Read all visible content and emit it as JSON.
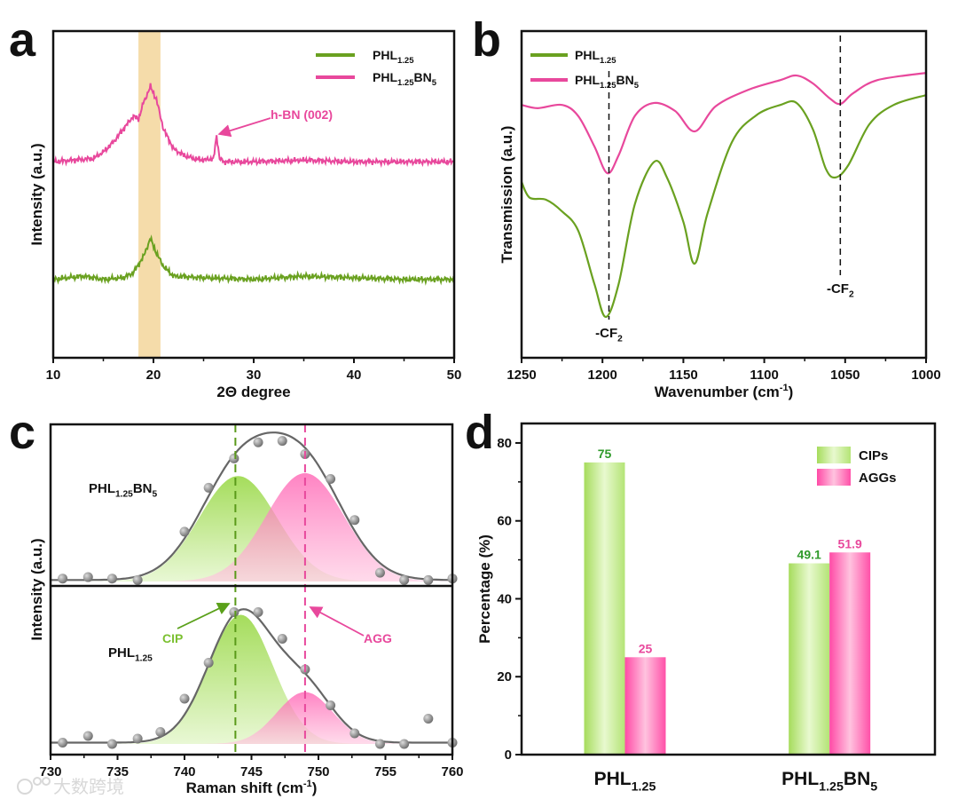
{
  "figure": {
    "panel_labels": [
      "a",
      "b",
      "c",
      "d"
    ],
    "watermark": "大数跨境"
  },
  "chart_data": [
    {
      "panel": "a",
      "type": "line",
      "xlabel": "2Θ degree",
      "ylabel": "Intensity (a.u.)",
      "xlim": [
        10,
        50
      ],
      "ylim": [
        0,
        100
      ],
      "xticks": [
        10,
        20,
        30,
        40,
        50
      ],
      "xtick_labels": [
        "10",
        "20",
        "30",
        "40",
        "50"
      ],
      "highlight_band": [
        18.5,
        20.7
      ],
      "highlight_color": "#f5dcaa",
      "annotation": {
        "text": "h-BN (002)",
        "x": 26.3,
        "color": "#e8489c"
      },
      "series": [
        {
          "label": {
            "base": "PHL",
            "sub": "1.25",
            "base2": "",
            "sub2": ""
          },
          "color": "#6aa120",
          "x": [
            10,
            13,
            15,
            17,
            18,
            19,
            19.7,
            20.3,
            21,
            22,
            25,
            30,
            35,
            40,
            45,
            50
          ],
          "y": [
            24,
            25,
            24,
            24.5,
            26,
            31,
            36.5,
            32,
            28,
            25,
            24.5,
            24,
            25,
            24.5,
            24,
            24
          ]
        },
        {
          "label": {
            "base": "PHL",
            "sub": "1.25",
            "base2": "BN",
            "sub2": "5"
          },
          "color": "#e8489c",
          "x": [
            10,
            12,
            14,
            15,
            16,
            17,
            18,
            18.5,
            19,
            19.7,
            20.3,
            21,
            22,
            23,
            24,
            25,
            26,
            26.3,
            26.6,
            27,
            30,
            35,
            40,
            45,
            50
          ],
          "y": [
            60,
            60.5,
            61,
            63,
            66,
            70,
            74,
            73,
            78,
            83,
            79,
            70,
            64,
            62,
            61,
            60.5,
            61,
            68,
            61,
            60,
            60,
            60.5,
            60,
            60,
            60
          ]
        }
      ]
    },
    {
      "panel": "b",
      "type": "line",
      "xlabel": {
        "base": "Wavenumber (cm",
        "sup": "-1",
        "end": ")"
      },
      "ylabel": "Transmission (a.u.)",
      "xlim": [
        1250,
        1000
      ],
      "ylim": [
        0,
        100
      ],
      "xticks": [
        1250,
        1200,
        1150,
        1100,
        1050,
        1000
      ],
      "xtick_labels": [
        "1250",
        "1200",
        "1150",
        "1100",
        "1050",
        "1000"
      ],
      "dashed_lines": [
        1196,
        1053
      ],
      "annotations": [
        {
          "base": "-CF",
          "sub": "2",
          "x": 1196
        },
        {
          "base": "-CF",
          "sub": "2",
          "x": 1053
        }
      ],
      "series": [
        {
          "label": {
            "base": "PHL",
            "sub": "1.25",
            "base2": "",
            "sub2": ""
          },
          "color": "#6aa120",
          "x": [
            1250,
            1245,
            1235,
            1225,
            1215,
            1205,
            1198,
            1190,
            1180,
            1168,
            1160,
            1150,
            1143,
            1135,
            1120,
            1105,
            1090,
            1080,
            1070,
            1062,
            1056,
            1048,
            1035,
            1020,
            1000
          ],
          "y": [
            53.8,
            49,
            48.4,
            44.8,
            38.9,
            22.6,
            12.5,
            22.6,
            47,
            60,
            55,
            41.6,
            28.8,
            44.3,
            66,
            74.2,
            77.4,
            78,
            70,
            57.9,
            55.2,
            59,
            71.5,
            77.4,
            80.4
          ]
        },
        {
          "label": {
            "base": "PHL",
            "sub": "1.25",
            "base2": "BN",
            "sub2": "5"
          },
          "color": "#e8489c",
          "x": [
            1250,
            1240,
            1225,
            1215,
            1205,
            1197,
            1190,
            1180,
            1168,
            1155,
            1143,
            1130,
            1110,
            1090,
            1080,
            1070,
            1060,
            1053,
            1045,
            1030,
            1000
          ],
          "y": [
            77.4,
            76.4,
            77.4,
            74,
            64.7,
            56.5,
            62,
            74,
            78,
            75.5,
            69.3,
            77,
            82,
            85,
            86.4,
            84,
            79.6,
            77.7,
            81,
            85,
            87.2
          ]
        }
      ]
    },
    {
      "panel": "c",
      "type": "scatter",
      "xlabel": {
        "base": "Raman shift (cm",
        "sup": "-1",
        "end": ")"
      },
      "ylabel": "Intensity (a.u.)",
      "xlim": [
        730,
        760
      ],
      "xticks": [
        730,
        735,
        740,
        745,
        750,
        755,
        760
      ],
      "xtick_labels": [
        "730",
        "735",
        "740",
        "745",
        "750",
        "755",
        "760"
      ],
      "dashed_lines": [
        {
          "x": 743.8,
          "color": "#5a9a1a"
        },
        {
          "x": 749,
          "color": "#e8489c"
        }
      ],
      "markers": [
        {
          "text": "CIP",
          "color": "#7bc030"
        },
        {
          "text": "AGG",
          "color": "#e8489c"
        }
      ],
      "samples": [
        {
          "label": {
            "base": "PHL",
            "sub": "1.25",
            "base2": "BN",
            "sub2": "5"
          },
          "x": [
            730.9,
            732.8,
            734.6,
            736.5,
            740,
            741.8,
            743.7,
            745.5,
            747.3,
            749,
            750.9,
            752.7,
            754.6,
            756.4,
            758.2,
            760
          ],
          "y": [
            0.02,
            0.03,
            0.02,
            0.01,
            0.34,
            0.64,
            0.84,
            0.95,
            0.96,
            0.87,
            0.7,
            0.42,
            0.06,
            0.01,
            0.01,
            0.02
          ],
          "components": [
            {
              "name": "CIP",
              "center": 744,
              "amplitude": 0.72,
              "width": 2.9
            },
            {
              "name": "AGG",
              "center": 749,
              "amplitude": 0.74,
              "width": 2.9
            }
          ]
        },
        {
          "label": {
            "base": "PHL",
            "sub": "1.25",
            "base2": "",
            "sub2": ""
          },
          "x": [
            730.9,
            732.8,
            734.6,
            736.5,
            738.2,
            740,
            741.8,
            743.7,
            745.5,
            747.3,
            749,
            750.9,
            752.7,
            754.6,
            756.4,
            758.2,
            760
          ],
          "y": [
            0.01,
            0.06,
            0,
            0.04,
            0.09,
            0.34,
            0.61,
            0.99,
            0.99,
            0.79,
            0.56,
            0.29,
            0.08,
            0,
            0,
            0.19,
            0.01
          ],
          "components": [
            {
              "name": "CIP",
              "center": 744.2,
              "amplitude": 0.97,
              "width": 2.4
            },
            {
              "name": "AGG",
              "center": 749,
              "amplitude": 0.39,
              "width": 2.1
            }
          ]
        }
      ]
    },
    {
      "panel": "d",
      "type": "bar",
      "ylabel": "Percentage (%)",
      "ylim": [
        0,
        85
      ],
      "yticks": [
        0,
        20,
        40,
        60,
        80
      ],
      "ytick_labels": [
        "0",
        "20",
        "40",
        "60",
        "80"
      ],
      "categories": [
        {
          "base": "PHL",
          "sub": "1.25",
          "base2": "",
          "sub2": ""
        },
        {
          "base": "PHL",
          "sub": "1.25",
          "base2": "BN",
          "sub2": "5"
        }
      ],
      "series": [
        {
          "name": "CIPs",
          "color": "#a8e060",
          "label_color": "#2f9a2a",
          "values": [
            75,
            49.1
          ],
          "value_labels": [
            "75",
            "49.1"
          ]
        },
        {
          "name": "AGGs",
          "color": "#ff4fa8",
          "label_color": "#e8489c",
          "values": [
            25,
            51.9
          ],
          "value_labels": [
            "25",
            "51.9"
          ]
        }
      ]
    }
  ]
}
